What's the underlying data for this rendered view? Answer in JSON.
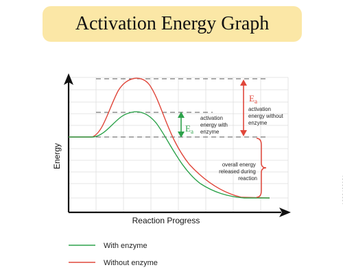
{
  "title": "Activation Energy Graph",
  "axes": {
    "x_label": "Reaction Progress",
    "y_label": "Energy"
  },
  "annotations": {
    "ea_symbol": "E",
    "ea_subscript": "a",
    "with_enzyme_label": [
      "activation",
      "energy with",
      "enzyme"
    ],
    "without_enzyme_label": [
      "activation",
      "energy without",
      "enzyme"
    ],
    "released_label": [
      "overall energy",
      "released during",
      "reaction"
    ]
  },
  "legend": {
    "items": [
      {
        "label": "With enzyme",
        "color": "#2ca24a"
      },
      {
        "label": "Without enzyme",
        "color": "#e0463a"
      }
    ]
  },
  "colors": {
    "with_enzyme": "#2ca24a",
    "without_enzyme": "#e0463a",
    "title_background": "#fbe7a6"
  },
  "watermark_id": "1838428931"
}
